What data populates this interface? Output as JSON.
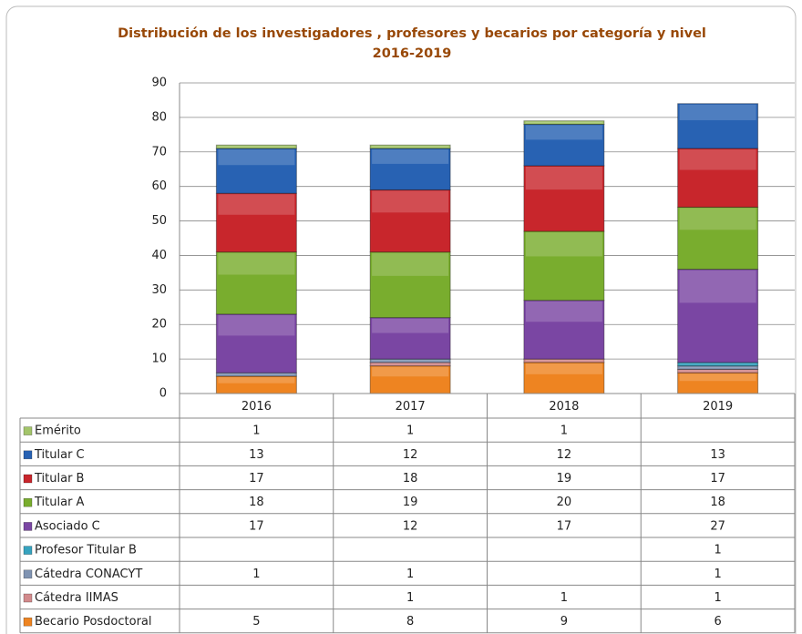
{
  "chart_data": {
    "type": "stacked_bar",
    "title": "Distribución de los investigadores , profesores  y becarios por categoría y nivel",
    "subtitle": "2016-2019",
    "categories": [
      "2016",
      "2017",
      "2018",
      "2019"
    ],
    "series": [
      {
        "name": "Becario Posdoctoral",
        "color": "#ee8421",
        "values": [
          5,
          8,
          9,
          6
        ]
      },
      {
        "name": "Cátedra IIMAS",
        "color": "#d28a8c",
        "values": [
          null,
          1,
          1,
          1
        ]
      },
      {
        "name": "Cátedra CONACYT",
        "color": "#7f93b2",
        "values": [
          1,
          1,
          null,
          1
        ]
      },
      {
        "name": "Profesor Titular B",
        "color": "#36a3bf",
        "values": [
          null,
          null,
          null,
          1
        ]
      },
      {
        "name": "Asociado C",
        "color": "#7a46a3",
        "values": [
          17,
          12,
          17,
          27
        ]
      },
      {
        "name": "Titular A",
        "color": "#79ad2e",
        "values": [
          18,
          19,
          20,
          18
        ]
      },
      {
        "name": "Titular B",
        "color": "#c8262c",
        "values": [
          17,
          18,
          19,
          17
        ]
      },
      {
        "name": "Titular C",
        "color": "#2862b3",
        "values": [
          13,
          12,
          12,
          13
        ]
      },
      {
        "name": "Emérito",
        "color": "#a3c56a",
        "values": [
          1,
          1,
          1,
          null
        ]
      }
    ],
    "ylim": [
      0,
      90
    ],
    "yticks": [
      0,
      10,
      20,
      30,
      40,
      50,
      60,
      70,
      80,
      90
    ],
    "grid": true
  }
}
